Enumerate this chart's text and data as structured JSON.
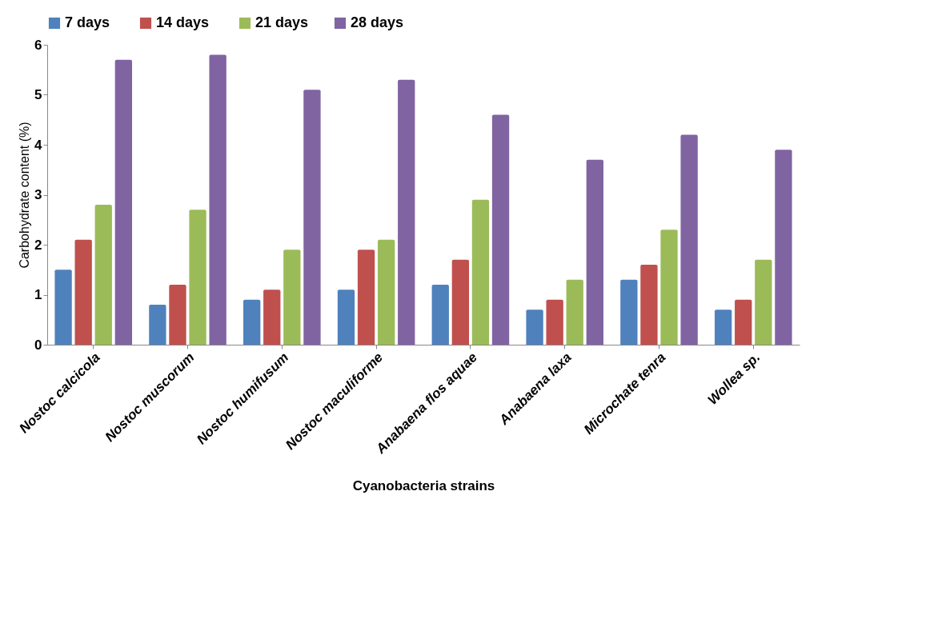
{
  "chart_data": {
    "type": "bar",
    "xlabel": "Cyanobacteria strains",
    "ylabel": "Carbohydrate content (%)",
    "categories": [
      "Nostoc calcicola",
      "Nostoc muscorum",
      "Nostoc humifusum",
      "Nostoc maculiforme",
      "Anabaena flos aquae",
      "Anabaena laxa",
      "Microchate tenra",
      "Wollea sp."
    ],
    "series": [
      {
        "name": "7  days",
        "color": "#4f81bd",
        "values": [
          1.5,
          0.8,
          0.9,
          1.1,
          1.2,
          0.7,
          1.3,
          0.7
        ]
      },
      {
        "name": "14  days",
        "color": "#c0504d",
        "values": [
          2.1,
          1.2,
          1.1,
          1.9,
          1.7,
          0.9,
          1.6,
          0.9
        ]
      },
      {
        "name": "21 days",
        "color": "#9bbb59",
        "values": [
          2.8,
          2.7,
          1.9,
          2.1,
          2.9,
          1.3,
          2.3,
          1.7
        ]
      },
      {
        "name": "28 days",
        "color": "#8064a2",
        "values": [
          5.7,
          5.8,
          5.1,
          5.3,
          4.6,
          3.7,
          4.2,
          3.9
        ]
      }
    ],
    "ylim": [
      0,
      6
    ],
    "yticks": [
      0,
      1,
      2,
      3,
      4,
      5,
      6
    ],
    "grid": false,
    "legend": "top"
  }
}
